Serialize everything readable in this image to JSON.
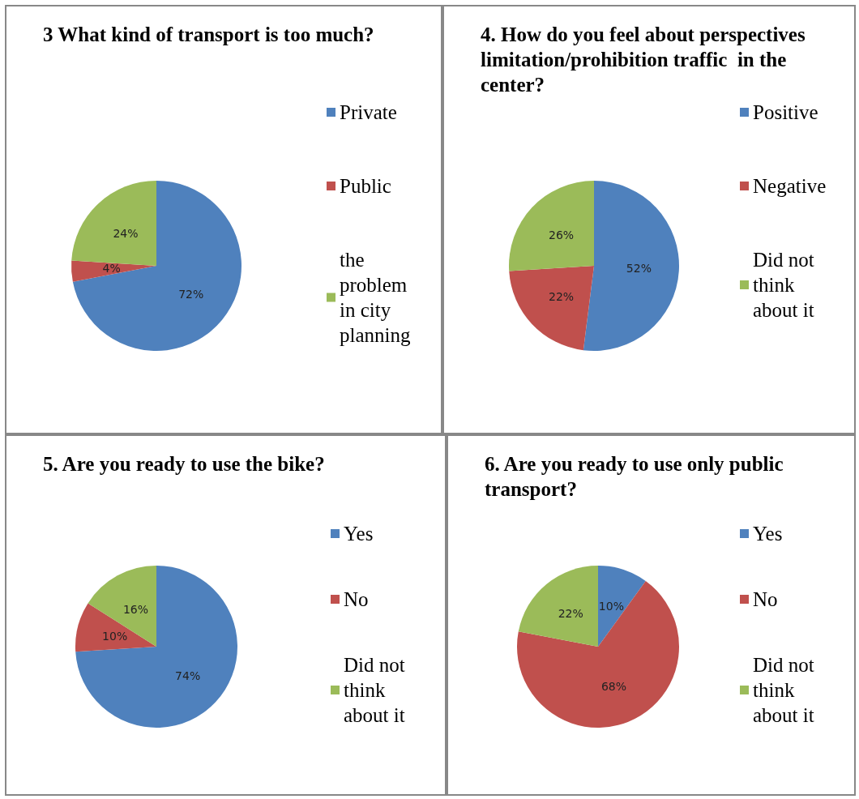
{
  "chart_data": [
    {
      "type": "pie",
      "title": "3 What kind of transport is too much?",
      "categories": [
        "Private",
        "Public",
        "the problem in city planning"
      ],
      "values": [
        72,
        4,
        24
      ],
      "colors": [
        "#4f81bd",
        "#c0504d",
        "#9bbb59"
      ],
      "value_labels": [
        "72%",
        "4%",
        "24%"
      ],
      "legend": "right"
    },
    {
      "type": "pie",
      "title": "4. How do you feel about perspectives limitation/prohibition traffic  in the center?",
      "categories": [
        "Positive",
        "Negative",
        "Did not think about it"
      ],
      "values": [
        52,
        22,
        26
      ],
      "colors": [
        "#4f81bd",
        "#c0504d",
        "#9bbb59"
      ],
      "value_labels": [
        "52%",
        "22%",
        "26%"
      ],
      "legend": "right"
    },
    {
      "type": "pie",
      "title": "5. Are you ready to use the bike?",
      "categories": [
        "Yes",
        "No",
        "Did not think about it"
      ],
      "values": [
        74,
        10,
        16
      ],
      "colors": [
        "#4f81bd",
        "#c0504d",
        "#9bbb59"
      ],
      "value_labels": [
        "74%",
        "10%",
        "16%"
      ],
      "legend": "right"
    },
    {
      "type": "pie",
      "title": "6. Are you ready to use only public transport?",
      "categories": [
        "Yes",
        "No",
        "Did not think about it"
      ],
      "values": [
        10,
        68,
        22
      ],
      "colors": [
        "#4f81bd",
        "#c0504d",
        "#9bbb59"
      ],
      "value_labels": [
        "10%",
        "68%",
        "22%"
      ],
      "legend": "right"
    }
  ]
}
